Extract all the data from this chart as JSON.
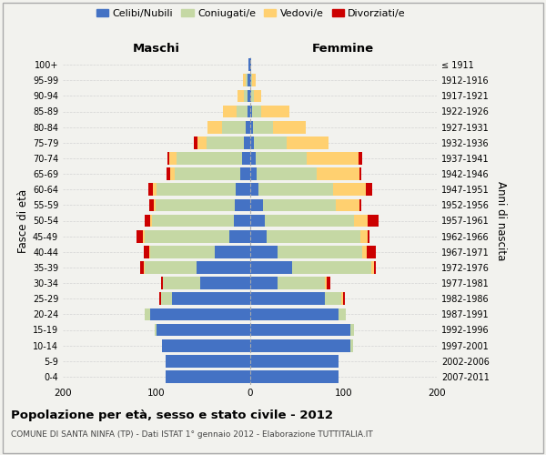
{
  "age_groups": [
    "0-4",
    "5-9",
    "10-14",
    "15-19",
    "20-24",
    "25-29",
    "30-34",
    "35-39",
    "40-44",
    "45-49",
    "50-54",
    "55-59",
    "60-64",
    "65-69",
    "70-74",
    "75-79",
    "80-84",
    "85-89",
    "90-94",
    "95-99",
    "100+"
  ],
  "birth_years": [
    "2007-2011",
    "2002-2006",
    "1997-2001",
    "1992-1996",
    "1987-1991",
    "1982-1986",
    "1977-1981",
    "1972-1976",
    "1967-1971",
    "1962-1966",
    "1957-1961",
    "1952-1956",
    "1947-1951",
    "1942-1946",
    "1937-1941",
    "1932-1936",
    "1927-1931",
    "1922-1926",
    "1917-1921",
    "1912-1916",
    "≤ 1911"
  ],
  "colors": {
    "celibi": "#4472C4",
    "coniugati": "#C5D8A4",
    "vedovi": "#FFD070",
    "divorziati": "#CC0000",
    "background": "#F2F2EE",
    "grid": "#CCCCCC"
  },
  "maschi": {
    "celibi": [
      90,
      90,
      94,
      100,
      107,
      83,
      53,
      57,
      37,
      22,
      17,
      16,
      15,
      10,
      8,
      6,
      4,
      2,
      2,
      2,
      1
    ],
    "coniugati": [
      0,
      0,
      0,
      2,
      5,
      12,
      40,
      55,
      70,
      90,
      88,
      85,
      85,
      70,
      70,
      40,
      26,
      12,
      4,
      2,
      0
    ],
    "vedovi": [
      0,
      0,
      0,
      0,
      0,
      0,
      0,
      1,
      1,
      2,
      2,
      2,
      4,
      5,
      8,
      10,
      15,
      15,
      7,
      3,
      0
    ],
    "divorziati": [
      0,
      0,
      0,
      0,
      0,
      2,
      2,
      4,
      5,
      7,
      5,
      5,
      5,
      4,
      2,
      4,
      0,
      0,
      0,
      0,
      0
    ]
  },
  "femmine": {
    "celibi": [
      95,
      95,
      108,
      108,
      95,
      80,
      30,
      45,
      30,
      18,
      16,
      14,
      9,
      7,
      6,
      4,
      3,
      2,
      1,
      1,
      1
    ],
    "coniugati": [
      0,
      0,
      2,
      3,
      8,
      18,
      50,
      85,
      90,
      100,
      95,
      78,
      80,
      65,
      55,
      35,
      22,
      10,
      3,
      1,
      0
    ],
    "vedovi": [
      0,
      0,
      0,
      0,
      0,
      2,
      2,
      3,
      5,
      8,
      15,
      25,
      35,
      45,
      55,
      45,
      35,
      30,
      8,
      4,
      0
    ],
    "divorziati": [
      0,
      0,
      0,
      0,
      0,
      2,
      4,
      2,
      10,
      2,
      12,
      2,
      7,
      2,
      4,
      0,
      0,
      0,
      0,
      0,
      0
    ]
  },
  "xlim": 200,
  "title": "Popolazione per età, sesso e stato civile - 2012",
  "subtitle": "COMUNE DI SANTA NINFA (TP) - Dati ISTAT 1° gennaio 2012 - Elaborazione TUTTITALIA.IT",
  "ylabel_left": "Fasce di età",
  "ylabel_right": "Anni di nascita",
  "xlabel_left": "Maschi",
  "xlabel_right": "Femmine"
}
